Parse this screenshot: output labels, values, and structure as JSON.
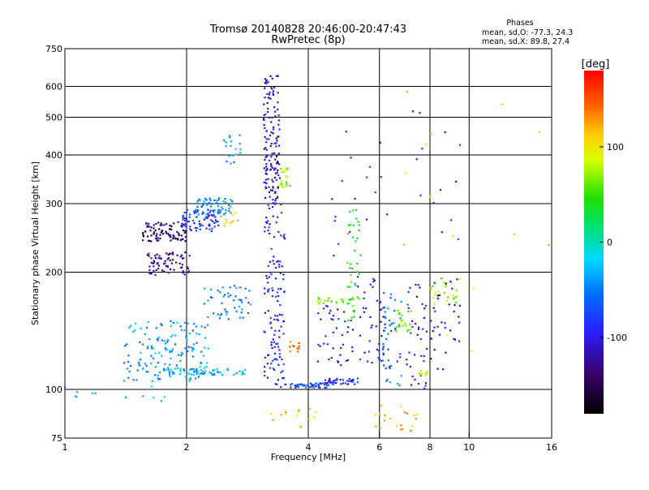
{
  "title": {
    "line1": "Tromsø 20140828 20:46:00-20:47:43",
    "line2": "RwPretec (8p)"
  },
  "stats": {
    "heading": "Phases",
    "line1": "mean, sd,O: -77.3, 24.3",
    "line2": "mean, sd,X: 89.8, 27.4"
  },
  "colorbar": {
    "unit_label": "[deg]",
    "range": [
      -180,
      180
    ],
    "ticks": [
      {
        "value": 100,
        "label": "100"
      },
      {
        "value": 0,
        "label": "0"
      },
      {
        "value": -100,
        "label": "-100"
      }
    ]
  },
  "chart_data": {
    "type": "scatter",
    "xlabel": "Frequency [MHz]",
    "ylabel": "Stationary phase Virtual Height [km]",
    "xscale": "log",
    "yscale": "log",
    "xlim": [
      1,
      16
    ],
    "ylim": [
      75,
      750
    ],
    "xticks": [
      {
        "value": 1,
        "label": "1"
      },
      {
        "value": 2,
        "label": "2"
      },
      {
        "value": 4,
        "label": "4"
      },
      {
        "value": 6,
        "label": "6"
      },
      {
        "value": 8,
        "label": "8"
      },
      {
        "value": 10,
        "label": "10"
      },
      {
        "value": 16,
        "label": "16"
      }
    ],
    "yticks": [
      {
        "value": 75,
        "label": "75"
      },
      {
        "value": 100,
        "label": "100"
      },
      {
        "value": 200,
        "label": "200"
      },
      {
        "value": 300,
        "label": "300"
      },
      {
        "value": 400,
        "label": "400"
      },
      {
        "value": 500,
        "label": "500"
      },
      {
        "value": 600,
        "label": "600"
      },
      {
        "value": 750,
        "label": "750"
      }
    ],
    "grid": true,
    "color_variable": "phase (deg)",
    "clusters": [
      {
        "x": [
          1.55,
          2.0
        ],
        "y": [
          240,
          270
        ],
        "phase": -140,
        "count": 90
      },
      {
        "x": [
          1.6,
          2.05
        ],
        "y": [
          195,
          225
        ],
        "phase": -125,
        "count": 70
      },
      {
        "x": [
          1.95,
          2.4
        ],
        "y": [
          255,
          290
        ],
        "phase": -85,
        "count": 70
      },
      {
        "x": [
          2.1,
          2.6
        ],
        "y": [
          280,
          310
        ],
        "phase": -45,
        "count": 60
      },
      {
        "x": [
          2.4,
          2.7
        ],
        "y": [
          260,
          285
        ],
        "phase": 120,
        "count": 12
      },
      {
        "x": [
          2.45,
          2.75
        ],
        "y": [
          380,
          450
        ],
        "phase": -40,
        "count": 18
      },
      {
        "x": [
          1.4,
          2.3
        ],
        "y": [
          105,
          150
        ],
        "phase": -40,
        "count": 150
      },
      {
        "x": [
          1.7,
          2.8
        ],
        "y": [
          109,
          113
        ],
        "phase": -30,
        "count": 60
      },
      {
        "x": [
          2.2,
          2.9
        ],
        "y": [
          150,
          185
        ],
        "phase": -50,
        "count": 50
      },
      {
        "x": [
          3.1,
          3.4
        ],
        "y": [
          300,
          640
        ],
        "phase": -110,
        "count": 140
      },
      {
        "x": [
          3.1,
          3.5
        ],
        "y": [
          100,
          300
        ],
        "phase": -90,
        "count": 130
      },
      {
        "x": [
          3.4,
          3.6
        ],
        "y": [
          330,
          370
        ],
        "phase": 75,
        "count": 20
      },
      {
        "x": [
          3.6,
          3.8
        ],
        "y": [
          125,
          133
        ],
        "phase": 140,
        "count": 12
      },
      {
        "x": [
          3.5,
          4.5
        ],
        "y": [
          101,
          104
        ],
        "phase": -75,
        "count": 50
      },
      {
        "x": [
          4.4,
          5.3
        ],
        "y": [
          103,
          107
        ],
        "phase": -95,
        "count": 40
      },
      {
        "x": [
          4.2,
          5.2
        ],
        "y": [
          166,
          172
        ],
        "phase": 70,
        "count": 25
      },
      {
        "x": [
          5.0,
          5.4
        ],
        "y": [
          150,
          300
        ],
        "phase": 40,
        "count": 40
      },
      {
        "x": [
          4.2,
          5.2
        ],
        "y": [
          115,
          165
        ],
        "phase": -100,
        "count": 40
      },
      {
        "x": [
          5.3,
          6.2
        ],
        "y": [
          115,
          200
        ],
        "phase": -100,
        "count": 45
      },
      {
        "x": [
          6.1,
          6.8
        ],
        "y": [
          100,
          180
        ],
        "phase": -60,
        "count": 45
      },
      {
        "x": [
          6.6,
          7.2
        ],
        "y": [
          140,
          160
        ],
        "phase": 60,
        "count": 20
      },
      {
        "x": [
          7.0,
          7.9
        ],
        "y": [
          100,
          190
        ],
        "phase": -100,
        "count": 40
      },
      {
        "x": [
          7.5,
          8.0
        ],
        "y": [
          108,
          112
        ],
        "phase": 90,
        "count": 10
      },
      {
        "x": [
          8.0,
          9.5
        ],
        "y": [
          165,
          195
        ],
        "phase": 70,
        "count": 25
      },
      {
        "x": [
          8.0,
          9.5
        ],
        "y": [
          110,
          200
        ],
        "phase": -110,
        "count": 35
      },
      {
        "x": [
          5.8,
          7.5
        ],
        "y": [
          78,
          92
        ],
        "phase": 120,
        "count": 20
      },
      {
        "x": [
          3.2,
          4.2
        ],
        "y": [
          78,
          90
        ],
        "phase": 110,
        "count": 15
      },
      {
        "x": [
          4.5,
          9.5
        ],
        "y": [
          220,
          520
        ],
        "phase": -90,
        "count": 30
      },
      {
        "x": [
          1.0,
          1.8
        ],
        "y": [
          93,
          102
        ],
        "phase": -30,
        "count": 12
      },
      {
        "x": [
          6.5,
          16.0
        ],
        "y": [
          100,
          650
        ],
        "phase": 100,
        "count": 15
      }
    ]
  }
}
